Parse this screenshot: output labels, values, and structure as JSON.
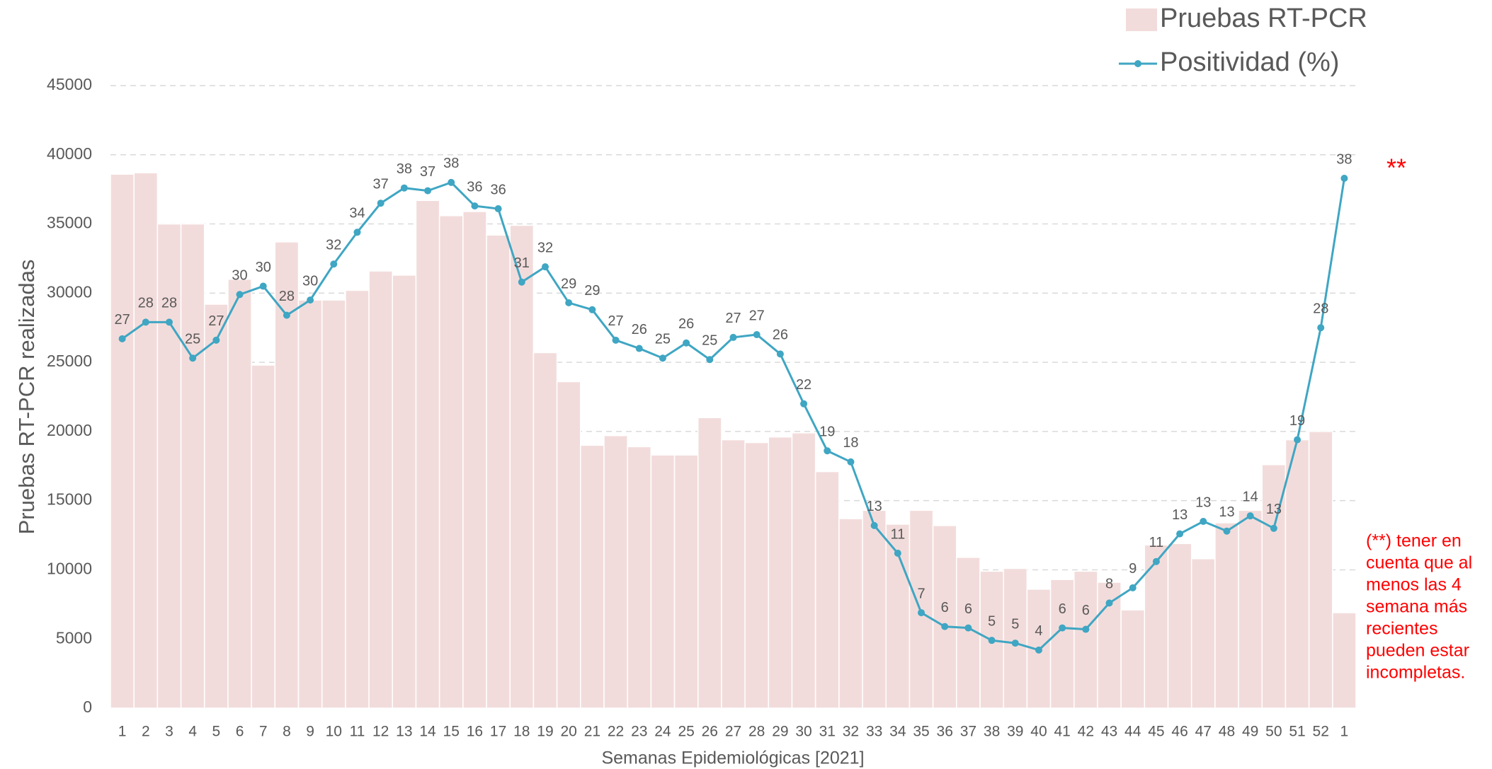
{
  "chart_data": {
    "type": "bar_line",
    "y_label": "Pruebas RT-PCR realizadas",
    "x_label": "Semanas Epidemiológicas [2021]",
    "categories": [
      "1",
      "2",
      "3",
      "4",
      "5",
      "6",
      "7",
      "8",
      "9",
      "10",
      "11",
      "12",
      "13",
      "14",
      "15",
      "16",
      "17",
      "18",
      "19",
      "20",
      "21",
      "22",
      "23",
      "24",
      "25",
      "26",
      "27",
      "28",
      "29",
      "30",
      "31",
      "32",
      "33",
      "34",
      "35",
      "36",
      "37",
      "38",
      "39",
      "40",
      "41",
      "42",
      "43",
      "44",
      "45",
      "46",
      "47",
      "48",
      "49",
      "50",
      "51",
      "52",
      "1"
    ],
    "ylim": [
      0,
      45000
    ],
    "yticks": [
      0,
      5000,
      10000,
      15000,
      20000,
      25000,
      30000,
      35000,
      40000,
      45000
    ],
    "y2lim": [
      0,
      45
    ],
    "grid": true,
    "legend": "top-right",
    "series": [
      {
        "name": "Pruebas RT-PCR",
        "type": "bar",
        "color": "#f2dcdb",
        "values": [
          38600,
          38700,
          35000,
          35000,
          29200,
          31000,
          24800,
          33700,
          29500,
          29500,
          30200,
          31600,
          31300,
          36700,
          35600,
          35900,
          34200,
          34900,
          25700,
          23600,
          19000,
          19700,
          18900,
          18300,
          18300,
          21000,
          19400,
          19200,
          19600,
          19900,
          17100,
          13700,
          14300,
          13300,
          14300,
          13200,
          10900,
          9900,
          10100,
          8600,
          9300,
          9900,
          9100,
          7100,
          11800,
          11900,
          10800,
          13400,
          14300,
          17600,
          19400,
          20000,
          6900
        ]
      },
      {
        "name": "Positividad (%)",
        "type": "line",
        "axis": "y2",
        "color": "#3fa6c3",
        "values": [
          26.7,
          27.9,
          27.9,
          25.3,
          26.6,
          29.9,
          30.5,
          28.4,
          29.5,
          32.1,
          34.4,
          36.5,
          37.6,
          37.4,
          38.0,
          36.3,
          36.1,
          30.8,
          31.9,
          29.3,
          28.8,
          26.6,
          26.0,
          25.3,
          26.4,
          25.2,
          26.8,
          27.0,
          25.6,
          22.0,
          18.6,
          17.8,
          13.2,
          11.2,
          6.9,
          5.9,
          5.8,
          4.9,
          4.7,
          4.2,
          5.8,
          5.7,
          7.6,
          8.7,
          10.6,
          12.6,
          13.5,
          12.8,
          13.9,
          13.0,
          19.4,
          27.5,
          38.3
        ],
        "value_labels": [
          "27",
          "28",
          "28",
          "25",
          "27",
          "30",
          "30",
          "28",
          "30",
          "32",
          "34",
          "37",
          "38",
          "37",
          "38",
          "36",
          "36",
          "31",
          "32",
          "29",
          "29",
          "27",
          "26",
          "25",
          "26",
          "25",
          "27",
          "27",
          "26",
          "22",
          "19",
          "18",
          "13",
          "11",
          "7",
          "6",
          "6",
          "5",
          "5",
          "4",
          "6",
          "6",
          "8",
          "9",
          "11",
          "13",
          "13",
          "13",
          "14",
          "13",
          "19",
          "28",
          "38"
        ]
      }
    ],
    "marker_annotation": "**",
    "note_lines": [
      "(**) tener en",
      "cuenta que al",
      "menos las 4",
      "semana más",
      "recientes",
      "pueden estar",
      "incompletas."
    ]
  }
}
